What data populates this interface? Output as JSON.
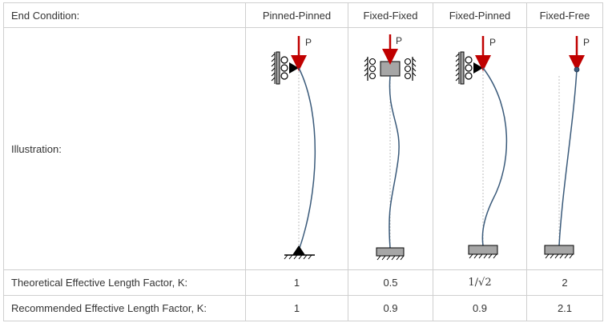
{
  "header": {
    "label": "End Condition:",
    "cases": [
      "Pinned-Pinned",
      "Fixed-Fixed",
      "Fixed-Pinned",
      "Fixed-Free"
    ]
  },
  "illustration": {
    "label": "Illustration:",
    "load_label": "P",
    "colors": {
      "load": "#c00000",
      "column": "#3a5a7a",
      "support": "#a6a6a6",
      "line": "#000000"
    }
  },
  "theoretical": {
    "label": "Theoretical Effective Length Factor, K:",
    "values": [
      "1",
      "0.5",
      "1/√2",
      "2"
    ]
  },
  "recommended": {
    "label": "Recommended Effective Length Factor, K:",
    "values": [
      "1",
      "0.9",
      "0.9",
      "2.1"
    ]
  }
}
